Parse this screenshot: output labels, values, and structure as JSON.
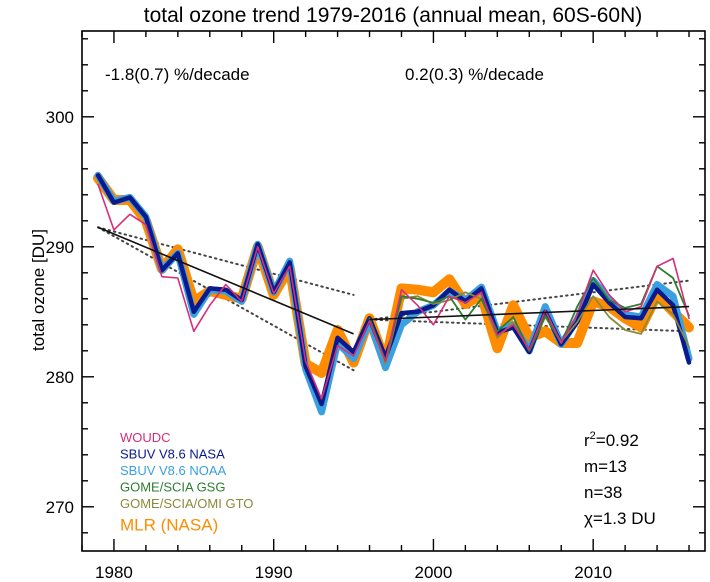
{
  "chart_data": {
    "type": "line",
    "title": "total ozone trend 1979-2016 (annual mean, 60S-60N)",
    "xlabel": "",
    "ylabel": "total ozone [DU]",
    "xlim": [
      1978,
      2017
    ],
    "ylim": [
      266.6,
      306.6
    ],
    "xticks": [
      1980,
      1990,
      2000,
      2010
    ],
    "xtick_labels": [
      "1980",
      "1990",
      "2000",
      "2010"
    ],
    "yticks": [
      270,
      280,
      290,
      300
    ],
    "ytick_labels": [
      "270",
      "280",
      "290",
      "300"
    ],
    "grid": false,
    "legend_position": "bottom-left",
    "annotations": {
      "trend1": "-1.8(0.7) %/decade",
      "trend2": "0.2(0.3) %/decade",
      "r2_prefix": "r",
      "r2_sup": "2",
      "r2_value": "=0.92",
      "m": "m=13",
      "n": "n=38",
      "chi": "χ=1.3 DU"
    },
    "x": [
      1979,
      1980,
      1981,
      1982,
      1983,
      1984,
      1985,
      1986,
      1987,
      1988,
      1989,
      1990,
      1991,
      1992,
      1993,
      1994,
      1995,
      1996,
      1997,
      1998,
      1999,
      2000,
      2001,
      2002,
      2003,
      2004,
      2005,
      2006,
      2007,
      2008,
      2009,
      2010,
      2011,
      2012,
      2013,
      2014,
      2015,
      2016
    ],
    "series": [
      {
        "name": "MLR (NASA)",
        "color": "#ff8c00",
        "values": [
          295.3,
          293.6,
          293.6,
          292.0,
          288.3,
          289.8,
          285.8,
          286.6,
          286.3,
          286.0,
          290.0,
          286.3,
          288.4,
          281.0,
          280.3,
          283.6,
          281.1,
          284.5,
          281.1,
          286.8,
          286.7,
          286.5,
          287.5,
          285.6,
          286.3,
          282.2,
          285.5,
          283.0,
          283.5,
          282.6,
          282.6,
          285.8,
          285.4,
          284.5,
          283.8,
          286.3,
          285.0,
          283.8
        ]
      },
      {
        "name": "GOME/SCIA/OMI GTO",
        "color": "#8a8a3a",
        "values": [
          null,
          null,
          null,
          null,
          null,
          null,
          null,
          null,
          null,
          null,
          null,
          null,
          null,
          null,
          null,
          null,
          null,
          284.5,
          281.0,
          286.0,
          286.2,
          285.6,
          285.9,
          286.5,
          286.0,
          283.0,
          284.2,
          282.0,
          284.6,
          282.7,
          284.2,
          286.2,
          284.6,
          283.6,
          283.3,
          285.8,
          284.8,
          282.3
        ]
      },
      {
        "name": "GOME/SCIA GSG",
        "color": "#2e7d32",
        "values": [
          null,
          null,
          null,
          null,
          null,
          null,
          null,
          null,
          null,
          null,
          null,
          null,
          null,
          null,
          null,
          null,
          null,
          284.5,
          281.2,
          286.2,
          286.0,
          285.7,
          286.2,
          284.4,
          286.0,
          283.5,
          284.6,
          282.0,
          284.7,
          282.6,
          285.4,
          287.6,
          285.9,
          285.3,
          285.6,
          288.5,
          287.6,
          284.7
        ]
      },
      {
        "name": "SBUV V8.6 NOAA",
        "color": "#3aa0e0",
        "values": [
          295.5,
          293.5,
          293.8,
          292.3,
          288.2,
          289.5,
          284.8,
          286.7,
          286.6,
          285.8,
          290.2,
          286.5,
          288.9,
          280.6,
          277.3,
          282.6,
          281.4,
          284.3,
          280.7,
          284.0,
          285.0,
          285.5,
          286.6,
          285.9,
          286.9,
          283.5,
          284.0,
          282.0,
          285.4,
          282.5,
          284.4,
          287.4,
          286.0,
          284.8,
          284.6,
          287.1,
          286.2,
          281.4
        ]
      },
      {
        "name": "WOUDC",
        "color": "#d62e7a",
        "values": [
          294.8,
          291.3,
          292.5,
          291.7,
          287.7,
          287.6,
          283.5,
          285.5,
          287.1,
          285.8,
          290.0,
          286.4,
          288.5,
          281.2,
          278.3,
          282.4,
          281.6,
          284.3,
          281.2,
          286.7,
          285.5,
          284.0,
          286.2,
          285.7,
          286.5,
          283.2,
          284.0,
          282.1,
          285.1,
          282.6,
          284.8,
          288.2,
          286.3,
          285.0,
          285.4,
          288.5,
          289.1,
          284.5
        ]
      },
      {
        "name": "SBUV V8.6 NASA",
        "color": "#0a1a8c",
        "values": [
          295.5,
          293.4,
          293.8,
          292.3,
          288.2,
          289.5,
          285.0,
          286.8,
          286.7,
          285.9,
          290.2,
          286.5,
          288.8,
          280.8,
          277.9,
          283.0,
          281.9,
          284.5,
          281.5,
          284.9,
          285.0,
          285.5,
          286.7,
          285.8,
          286.8,
          283.4,
          283.8,
          281.9,
          285.0,
          282.5,
          284.2,
          287.1,
          285.7,
          284.6,
          284.5,
          286.7,
          285.5,
          281.1
        ]
      }
    ],
    "trend_lines": [
      {
        "name": "trend 1979-1995",
        "x": [
          1979,
          1995
        ],
        "y": [
          291.5,
          283.3
        ],
        "upper": [
          291.5,
          286.3
        ],
        "lower": [
          291.5,
          280.5
        ]
      },
      {
        "name": "trend 1996-2016",
        "x": [
          1996,
          2016
        ],
        "y": [
          284.4,
          285.4
        ],
        "upper": [
          284.4,
          287.4
        ],
        "lower": [
          284.4,
          283.5
        ]
      }
    ]
  }
}
